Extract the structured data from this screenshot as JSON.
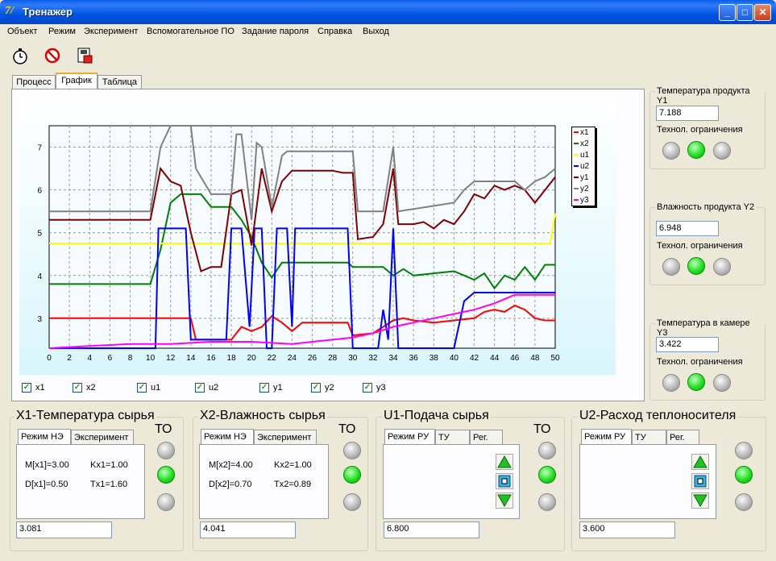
{
  "window": {
    "title": "Тренажер"
  },
  "menu": [
    "Объект",
    "Режим",
    "Эксперимент",
    "Вспомогательное ПО",
    "Задание пароля",
    "Справка",
    "Выход"
  ],
  "tabs": [
    "Процесс",
    "График",
    "Таблица"
  ],
  "chart_data": {
    "type": "line",
    "xlim": [
      0,
      50
    ],
    "ylim": [
      2.3,
      7.5
    ],
    "x_ticks": [
      "0",
      "2",
      "4",
      "6",
      "8",
      "10",
      "12",
      "14",
      "16",
      "18",
      "20",
      "22",
      "24",
      "26",
      "28",
      "30",
      "32",
      "34",
      "36",
      "38",
      "40",
      "42",
      "44",
      "46",
      "48",
      "50"
    ],
    "y_ticks": [
      "3",
      "4",
      "5",
      "6",
      "7"
    ],
    "legend_position": "right",
    "grid": true,
    "series": [
      {
        "name": "x1",
        "color": "#ff0000",
        "points": [
          [
            0,
            3.0
          ],
          [
            14,
            3.0
          ],
          [
            14.5,
            2.5
          ],
          [
            18,
            2.5
          ],
          [
            19,
            2.8
          ],
          [
            20,
            2.7
          ],
          [
            21,
            2.8
          ],
          [
            22,
            3.05
          ],
          [
            23,
            2.9
          ],
          [
            24,
            2.7
          ],
          [
            25,
            2.9
          ],
          [
            29.5,
            2.9
          ],
          [
            30,
            2.6
          ],
          [
            32,
            2.65
          ],
          [
            33,
            2.8
          ],
          [
            34,
            2.95
          ],
          [
            35,
            3.0
          ],
          [
            36,
            2.95
          ],
          [
            38,
            2.9
          ],
          [
            40,
            2.95
          ],
          [
            42,
            3.0
          ],
          [
            43,
            3.15
          ],
          [
            44,
            3.2
          ],
          [
            45,
            3.15
          ],
          [
            46,
            3.3
          ],
          [
            47,
            3.2
          ],
          [
            48,
            3.0
          ],
          [
            49,
            2.95
          ],
          [
            50,
            2.95
          ]
        ]
      },
      {
        "name": "x2",
        "color": "#008000",
        "points": [
          [
            0,
            3.8
          ],
          [
            10,
            3.8
          ],
          [
            11,
            4.6
          ],
          [
            12,
            5.7
          ],
          [
            13,
            5.9
          ],
          [
            15,
            5.9
          ],
          [
            16,
            5.6
          ],
          [
            18,
            5.6
          ],
          [
            19,
            5.3
          ],
          [
            20,
            4.9
          ],
          [
            21,
            4.3
          ],
          [
            22,
            3.95
          ],
          [
            23,
            4.3
          ],
          [
            29.5,
            4.3
          ],
          [
            30,
            4.2
          ],
          [
            33,
            4.2
          ],
          [
            34,
            4.0
          ],
          [
            35,
            4.15
          ],
          [
            36,
            4.0
          ],
          [
            38,
            4.05
          ],
          [
            40,
            4.1
          ],
          [
            41,
            4.0
          ],
          [
            42,
            3.9
          ],
          [
            43,
            4.05
          ],
          [
            44,
            3.7
          ],
          [
            45,
            4.0
          ],
          [
            46,
            3.9
          ],
          [
            47,
            4.2
          ],
          [
            48,
            3.9
          ],
          [
            49,
            4.25
          ],
          [
            50,
            4.25
          ]
        ]
      },
      {
        "name": "u1",
        "color": "#ffff00",
        "points": [
          [
            0,
            4.75
          ],
          [
            49.5,
            4.75
          ],
          [
            50,
            5.45
          ]
        ]
      },
      {
        "name": "u2",
        "color": "#0000ff",
        "points": [
          [
            0,
            2.3
          ],
          [
            10.5,
            2.3
          ],
          [
            10.8,
            5.1
          ],
          [
            13.5,
            5.1
          ],
          [
            14,
            2.5
          ],
          [
            17.5,
            2.5
          ],
          [
            18,
            5.1
          ],
          [
            19,
            5.1
          ],
          [
            19.8,
            2.8
          ],
          [
            20.3,
            5.1
          ],
          [
            21,
            5.1
          ],
          [
            21.5,
            2.3
          ],
          [
            22,
            2.3
          ],
          [
            22.5,
            5.1
          ],
          [
            23.5,
            5.1
          ],
          [
            24,
            2.8
          ],
          [
            24.3,
            5.1
          ],
          [
            29.5,
            5.1
          ],
          [
            30,
            2.3
          ],
          [
            32.5,
            2.3
          ],
          [
            33,
            3.2
          ],
          [
            33.5,
            2.5
          ],
          [
            34,
            5.1
          ],
          [
            34.5,
            2.3
          ],
          [
            40,
            2.3
          ],
          [
            41,
            3.4
          ],
          [
            42,
            3.6
          ],
          [
            50,
            3.6
          ]
        ]
      },
      {
        "name": "y1",
        "color": "#800000",
        "points": [
          [
            0,
            5.3
          ],
          [
            10,
            5.3
          ],
          [
            11,
            6.5
          ],
          [
            12,
            6.2
          ],
          [
            13,
            6.1
          ],
          [
            14,
            5.0
          ],
          [
            15,
            4.1
          ],
          [
            16,
            4.2
          ],
          [
            17,
            4.2
          ],
          [
            18,
            5.9
          ],
          [
            19,
            6.0
          ],
          [
            20,
            4.7
          ],
          [
            21,
            6.5
          ],
          [
            22,
            5.5
          ],
          [
            23,
            6.2
          ],
          [
            24,
            6.45
          ],
          [
            26,
            6.45
          ],
          [
            28,
            6.45
          ],
          [
            29,
            6.4
          ],
          [
            30,
            6.4
          ],
          [
            30.5,
            4.85
          ],
          [
            32,
            4.9
          ],
          [
            33,
            5.2
          ],
          [
            34,
            6.5
          ],
          [
            34.5,
            5.2
          ],
          [
            36,
            5.2
          ],
          [
            37,
            5.25
          ],
          [
            38,
            5.1
          ],
          [
            39,
            5.3
          ],
          [
            40,
            5.2
          ],
          [
            41,
            5.5
          ],
          [
            42,
            5.9
          ],
          [
            43,
            5.8
          ],
          [
            44,
            6.1
          ],
          [
            45,
            6.0
          ],
          [
            46,
            6.1
          ],
          [
            47,
            6.0
          ],
          [
            48,
            5.7
          ],
          [
            49,
            6.0
          ],
          [
            50,
            6.3
          ]
        ]
      },
      {
        "name": "y2",
        "color": "#808080",
        "points": [
          [
            0,
            5.5
          ],
          [
            10,
            5.5
          ],
          [
            11,
            7.0
          ],
          [
            12,
            7.5
          ],
          [
            13,
            7.5
          ],
          [
            14,
            7.5
          ],
          [
            14.5,
            6.5
          ],
          [
            16,
            5.9
          ],
          [
            18,
            5.9
          ],
          [
            18.5,
            7.3
          ],
          [
            19,
            7.3
          ],
          [
            20,
            5.3
          ],
          [
            20.5,
            7.1
          ],
          [
            21,
            7.0
          ],
          [
            22,
            5.6
          ],
          [
            23,
            6.8
          ],
          [
            23.5,
            6.9
          ],
          [
            30,
            6.9
          ],
          [
            30.5,
            5.5
          ],
          [
            33,
            5.5
          ],
          [
            34,
            7.0
          ],
          [
            34.5,
            5.5
          ],
          [
            40,
            5.7
          ],
          [
            41,
            6.0
          ],
          [
            42,
            6.2
          ],
          [
            46,
            6.2
          ],
          [
            47,
            6.0
          ],
          [
            48,
            6.2
          ],
          [
            49,
            6.3
          ],
          [
            50,
            6.5
          ]
        ]
      },
      {
        "name": "y3",
        "color": "#ff00ff",
        "points": [
          [
            0,
            2.3
          ],
          [
            4,
            2.35
          ],
          [
            8,
            2.4
          ],
          [
            12,
            2.4
          ],
          [
            16,
            2.45
          ],
          [
            20,
            2.45
          ],
          [
            24,
            2.4
          ],
          [
            26,
            2.45
          ],
          [
            28,
            2.5
          ],
          [
            30,
            2.55
          ],
          [
            32,
            2.65
          ],
          [
            34,
            2.8
          ],
          [
            36,
            2.9
          ],
          [
            38,
            3.0
          ],
          [
            40,
            3.1
          ],
          [
            42,
            3.2
          ],
          [
            44,
            3.35
          ],
          [
            46,
            3.55
          ],
          [
            48,
            3.55
          ],
          [
            50,
            3.55
          ]
        ]
      }
    ]
  },
  "checkboxes": [
    {
      "label": "x1",
      "checked": true
    },
    {
      "label": "x2",
      "checked": true
    },
    {
      "label": "u1",
      "checked": true
    },
    {
      "label": "u2",
      "checked": true
    },
    {
      "label": "y1",
      "checked": true
    },
    {
      "label": "y2",
      "checked": true
    },
    {
      "label": "y3",
      "checked": true
    }
  ],
  "right_panel": [
    {
      "title": "Температура продукта Y1",
      "value": "7.188",
      "subtitle": "Технол. ограничения"
    },
    {
      "title": "Влажность продукта Y2",
      "value": "6.948",
      "subtitle": "Технол. ограничения"
    },
    {
      "title": "Температура в камере Y3",
      "value": "3.422",
      "subtitle": "Технол. ограничения"
    }
  ],
  "bottom_groups": [
    {
      "title": "X1-Температура сырья",
      "to": "ТО",
      "tabs": [
        "Режим НЭ",
        "Эксперимент"
      ],
      "stats": [
        "M[x1]=3.00",
        "Kx1=1.00",
        "D[x1]=0.50",
        "Tx1=1.60"
      ],
      "value": "3.081"
    },
    {
      "title": "X2-Влажность сырья",
      "to": "ТО",
      "tabs": [
        "Режим НЭ",
        "Эксперимент"
      ],
      "stats": [
        "M[x2]=4.00",
        "Kx2=1.00",
        "D[x2]=0.70",
        "Tx2=0.89"
      ],
      "value": "4.041"
    },
    {
      "title": "U1-Подача сырья",
      "to": "ТО",
      "tabs": [
        "Режим РУ",
        "ТУ",
        "Рег."
      ],
      "value": "6.800"
    },
    {
      "title": "U2-Расход теплоносителя",
      "tabs": [
        "Режим РУ",
        "ТУ",
        "Рег."
      ],
      "value": "3.600"
    }
  ]
}
